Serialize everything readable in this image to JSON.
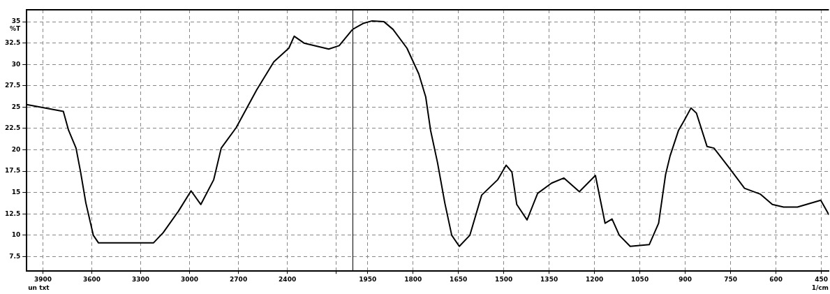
{
  "chart_data": [
    {
      "type": "line",
      "ylabel": "%T",
      "annotations": [
        "un txt"
      ],
      "x": [
        4000,
        3775,
        3743,
        3697,
        3669,
        3637,
        3591,
        3559,
        3222,
        3162,
        3069,
        2991,
        2931,
        2852,
        2806,
        2714,
        2589,
        2483,
        2391,
        2358,
        2298,
        2146,
        2082,
        2000
      ],
      "series": [
        {
          "color": "#000000",
          "values": [
            25.3,
            24.5,
            22.3,
            20.2,
            17.4,
            13.8,
            10.0,
            9.1,
            9.1,
            10.3,
            12.8,
            15.2,
            13.6,
            16.5,
            20.2,
            22.6,
            27.0,
            30.3,
            31.9,
            33.3,
            32.5,
            31.8,
            32.2,
            34.1
          ]
        }
      ],
      "xlim": [
        4000,
        2000
      ],
      "xticks": [
        3900,
        3600,
        3300,
        3000,
        2700,
        2400,
        {
          "value": 2100,
          "label": null
        }
      ],
      "ylim": [
        5.8,
        36.4
      ],
      "yticks": [
        7.5,
        10,
        12.5,
        15,
        17.5,
        20,
        22.5,
        25,
        27.5,
        30,
        32.5,
        35
      ],
      "grid": true,
      "marker": "none",
      "line_style": "solid"
    },
    {
      "type": "line",
      "xlabel": "1/cm",
      "x": [
        2000,
        1965,
        1935,
        1896,
        1866,
        1820,
        1781,
        1758,
        1742,
        1719,
        1695,
        1672,
        1647,
        1612,
        1573,
        1520,
        1492,
        1473,
        1457,
        1423,
        1388,
        1342,
        1301,
        1250,
        1197,
        1165,
        1142,
        1118,
        1082,
        1019,
        988,
        965,
        950,
        922,
        904,
        881,
        863,
        828,
        805,
        759,
        704,
        651,
        612,
        575,
        529,
        452,
        425
      ],
      "series": [
        {
          "color": "#000000",
          "values": [
            34.1,
            34.8,
            35.1,
            35.0,
            34.1,
            31.9,
            28.9,
            26.2,
            22.3,
            18.5,
            13.8,
            10.0,
            8.7,
            10.0,
            14.7,
            16.5,
            18.2,
            17.4,
            13.6,
            11.8,
            14.9,
            16.1,
            16.7,
            15.1,
            17.0,
            11.4,
            11.9,
            10.0,
            8.7,
            8.9,
            11.4,
            17.1,
            19.3,
            22.3,
            23.4,
            24.9,
            24.3,
            20.4,
            20.2,
            18.1,
            15.5,
            14.8,
            13.6,
            13.3,
            13.3,
            14.1,
            12.4
          ]
        }
      ],
      "xlim": [
        2000,
        425
      ],
      "xticks": [
        1950,
        1800,
        1650,
        1500,
        1350,
        1200,
        1050,
        900,
        750,
        600,
        450
      ],
      "ylim": [
        5.8,
        36.4
      ],
      "yticks": [
        7.5,
        10,
        12.5,
        15,
        17.5,
        20,
        22.5,
        25,
        27.5,
        30,
        32.5,
        35
      ],
      "tick_labels": "x",
      "grid": true,
      "marker": "none",
      "line_style": "solid"
    }
  ]
}
